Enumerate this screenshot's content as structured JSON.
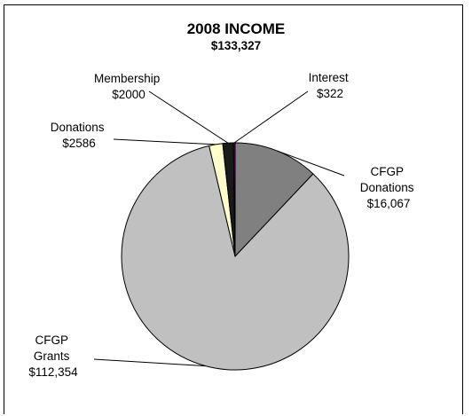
{
  "chart_data": {
    "type": "pie",
    "title": "2008 INCOME",
    "subtitle": "$133,327",
    "slices": [
      {
        "label": "CFGP Donations",
        "label_lines": [
          "CFGP",
          "Donations",
          "$16,067"
        ],
        "value": 16067,
        "color": "#808080"
      },
      {
        "label": "CFGP Grants",
        "label_lines": [
          "CFGP",
          "Grants",
          "$112,354"
        ],
        "value": 112354,
        "color": "#c0c0c0"
      },
      {
        "label": "Donations",
        "label_lines": [
          "Donations",
          "$2586"
        ],
        "value": 2586,
        "color": "#ffffcc"
      },
      {
        "label": "Membership",
        "label_lines": [
          "Membership",
          "$2000"
        ],
        "value": 2000,
        "color": "#1a1a1a"
      },
      {
        "label": "Interest",
        "label_lines": [
          "Interest",
          "$322"
        ],
        "value": 322,
        "color": "#660066"
      }
    ],
    "legend": "none"
  }
}
